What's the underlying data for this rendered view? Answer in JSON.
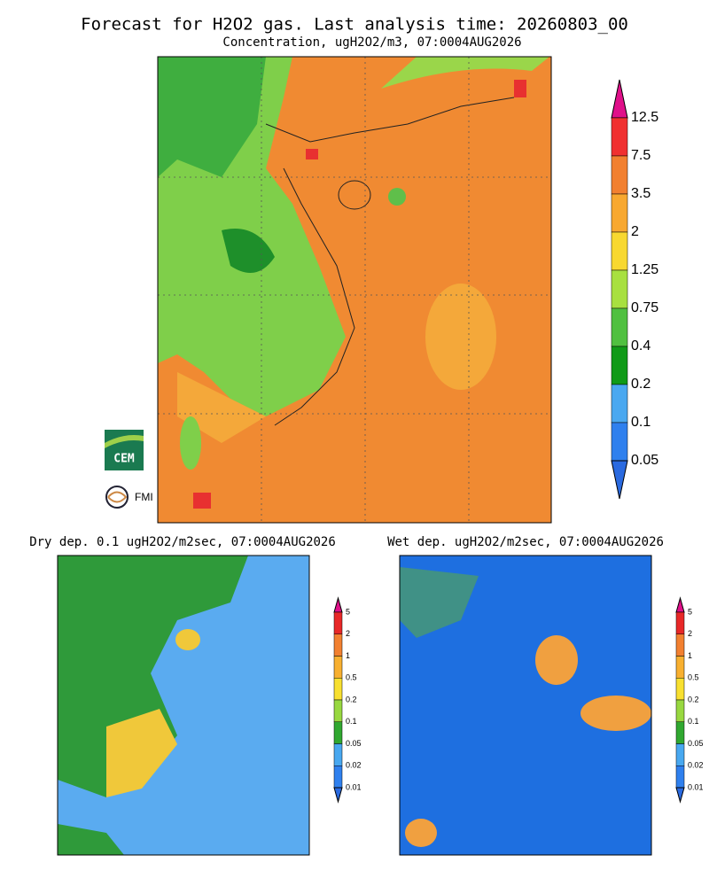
{
  "header": {
    "title": "Forecast for H2O2 gas. Last analysis time: 20260803_00",
    "subtitle": "Concentration, ugH2O2/m3, 07:0004AUG2026"
  },
  "main_colorbar": {
    "labels": [
      "12.5",
      "7.5",
      "3.5",
      "2",
      "1.25",
      "0.75",
      "0.4",
      "0.2",
      "0.1",
      "0.05"
    ]
  },
  "logos": {
    "cem": "CEM",
    "fmi": "FMI"
  },
  "dry_panel": {
    "title": "Dry dep. 0.1 ugH2O2/m2sec, 07:0004AUG2026",
    "labels": [
      "5",
      "2",
      "1",
      "0.5",
      "0.2",
      "0.1",
      "0.05",
      "0.02",
      "0.01"
    ]
  },
  "wet_panel": {
    "title": "Wet dep. ugH2O2/m2sec, 07:0004AUG2026",
    "labels": [
      "5",
      "2",
      "1",
      "0.5",
      "0.2",
      "0.1",
      "0.05",
      "0.02",
      "0.01"
    ]
  }
}
